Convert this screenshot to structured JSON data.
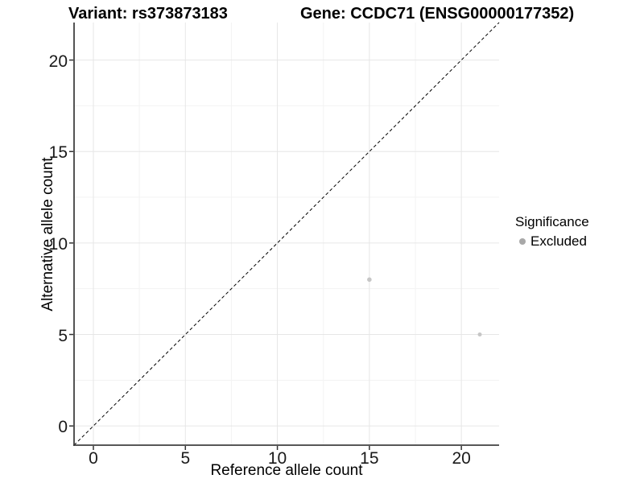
{
  "header": {
    "variant_title": "Variant: rs373873183",
    "gene_title": "Gene: CCDC71 (ENSG00000177352)"
  },
  "legend": {
    "title": "Significance",
    "items": [
      {
        "label": "Excluded",
        "dot_color": "#a8a8a8"
      }
    ]
  },
  "chart_data": {
    "type": "scatter",
    "title": "Variant: rs373873183   Gene: CCDC71 (ENSG00000177352)",
    "xlabel": "Reference allele count",
    "ylabel": "Alternative allele count",
    "x_ticks": [
      0,
      5,
      10,
      15,
      20
    ],
    "y_ticks": [
      0,
      5,
      10,
      15,
      20
    ],
    "minor_ticks": [
      2.5,
      7.5,
      12.5,
      17.5
    ],
    "xlim": [
      -1.05,
      22.05
    ],
    "ylim": [
      -1.05,
      22.05
    ],
    "grid": true,
    "legend_position": "right",
    "series": [
      {
        "name": "Excluded",
        "color": "#c6c6c6",
        "points": [
          {
            "x": 15,
            "y": 8,
            "r": 2.8
          },
          {
            "x": 21,
            "y": 5,
            "r": 2.5
          }
        ]
      }
    ],
    "reference_line": {
      "type": "identity",
      "style": "dashed"
    }
  },
  "colors": {
    "background": "#ffffff",
    "grid_major": "#e6e6e6",
    "grid_minor": "#f3f3f3",
    "axis_line": "#404040",
    "tick_mark": "#333333",
    "dashed_line": "#000000",
    "point": "#c6c6c6",
    "legend_dot": "#a8a8a8"
  }
}
